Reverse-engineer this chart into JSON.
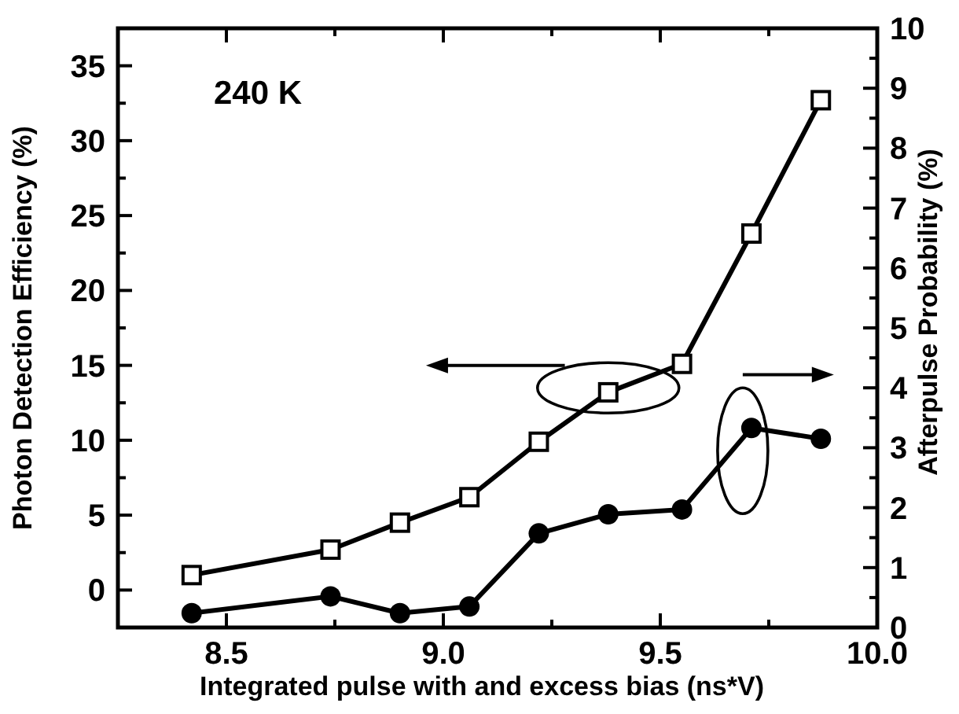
{
  "chart_data": {
    "type": "line",
    "xlabel": "Integrated pulse with and excess bias (ns*V)",
    "ylabel": "Photon Detection Efficiency (%)",
    "y2label": "Afterpulse Probability (%)",
    "annotations": [
      "240 K"
    ],
    "xlim": [
      8.25,
      10.0
    ],
    "xticks": [
      8.5,
      {
        "value": 8.75,
        "label": null
      },
      {
        "value": 9.0,
        "label": "9.0"
      },
      {
        "value": 9.25,
        "label": null
      },
      9.5,
      {
        "value": 9.75,
        "label": null
      },
      {
        "value": 10.0,
        "label": "10.0"
      }
    ],
    "ylim": [
      -2.5,
      37.5
    ],
    "yticks": [
      {
        "value": -2.5,
        "label": null
      },
      0,
      {
        "value": 2.5,
        "label": null
      },
      5,
      {
        "value": 7.5,
        "label": null
      },
      10,
      {
        "value": 12.5,
        "label": null
      },
      15,
      {
        "value": 17.5,
        "label": null
      },
      20,
      {
        "value": 22.5,
        "label": null
      },
      25,
      {
        "value": 27.5,
        "label": null
      },
      30,
      {
        "value": 32.5,
        "label": null
      },
      35,
      {
        "value": 37.5,
        "label": null
      }
    ],
    "y2lim": [
      0,
      10
    ],
    "y2ticks": [
      0,
      {
        "value": 0.5,
        "label": null
      },
      1,
      {
        "value": 1.5,
        "label": null
      },
      2,
      {
        "value": 2.5,
        "label": null
      },
      3,
      {
        "value": 3.5,
        "label": null
      },
      4,
      {
        "value": 4.5,
        "label": null
      },
      5,
      {
        "value": 5.5,
        "label": null
      },
      6,
      {
        "value": 6.5,
        "label": null
      },
      7,
      {
        "value": 7.5,
        "label": null
      },
      8,
      {
        "value": 8.5,
        "label": null
      },
      9,
      {
        "value": 9.5,
        "label": null
      },
      10
    ],
    "x": [
      8.42,
      8.74,
      8.9,
      9.06,
      9.22,
      9.38,
      9.55,
      9.71,
      9.87
    ],
    "line_style": "solid",
    "series": [
      {
        "color": "#000000",
        "marker": "square",
        "values": [
          1.0,
          2.7,
          4.5,
          6.2,
          9.9,
          13.2,
          15.1,
          23.8,
          32.7
        ]
      },
      {
        "color": "#000000",
        "marker": "circle",
        "axis": "y2",
        "values": [
          0.24,
          0.52,
          0.24,
          0.35,
          1.57,
          1.89,
          1.97,
          3.33,
          3.15
        ]
      }
    ]
  }
}
